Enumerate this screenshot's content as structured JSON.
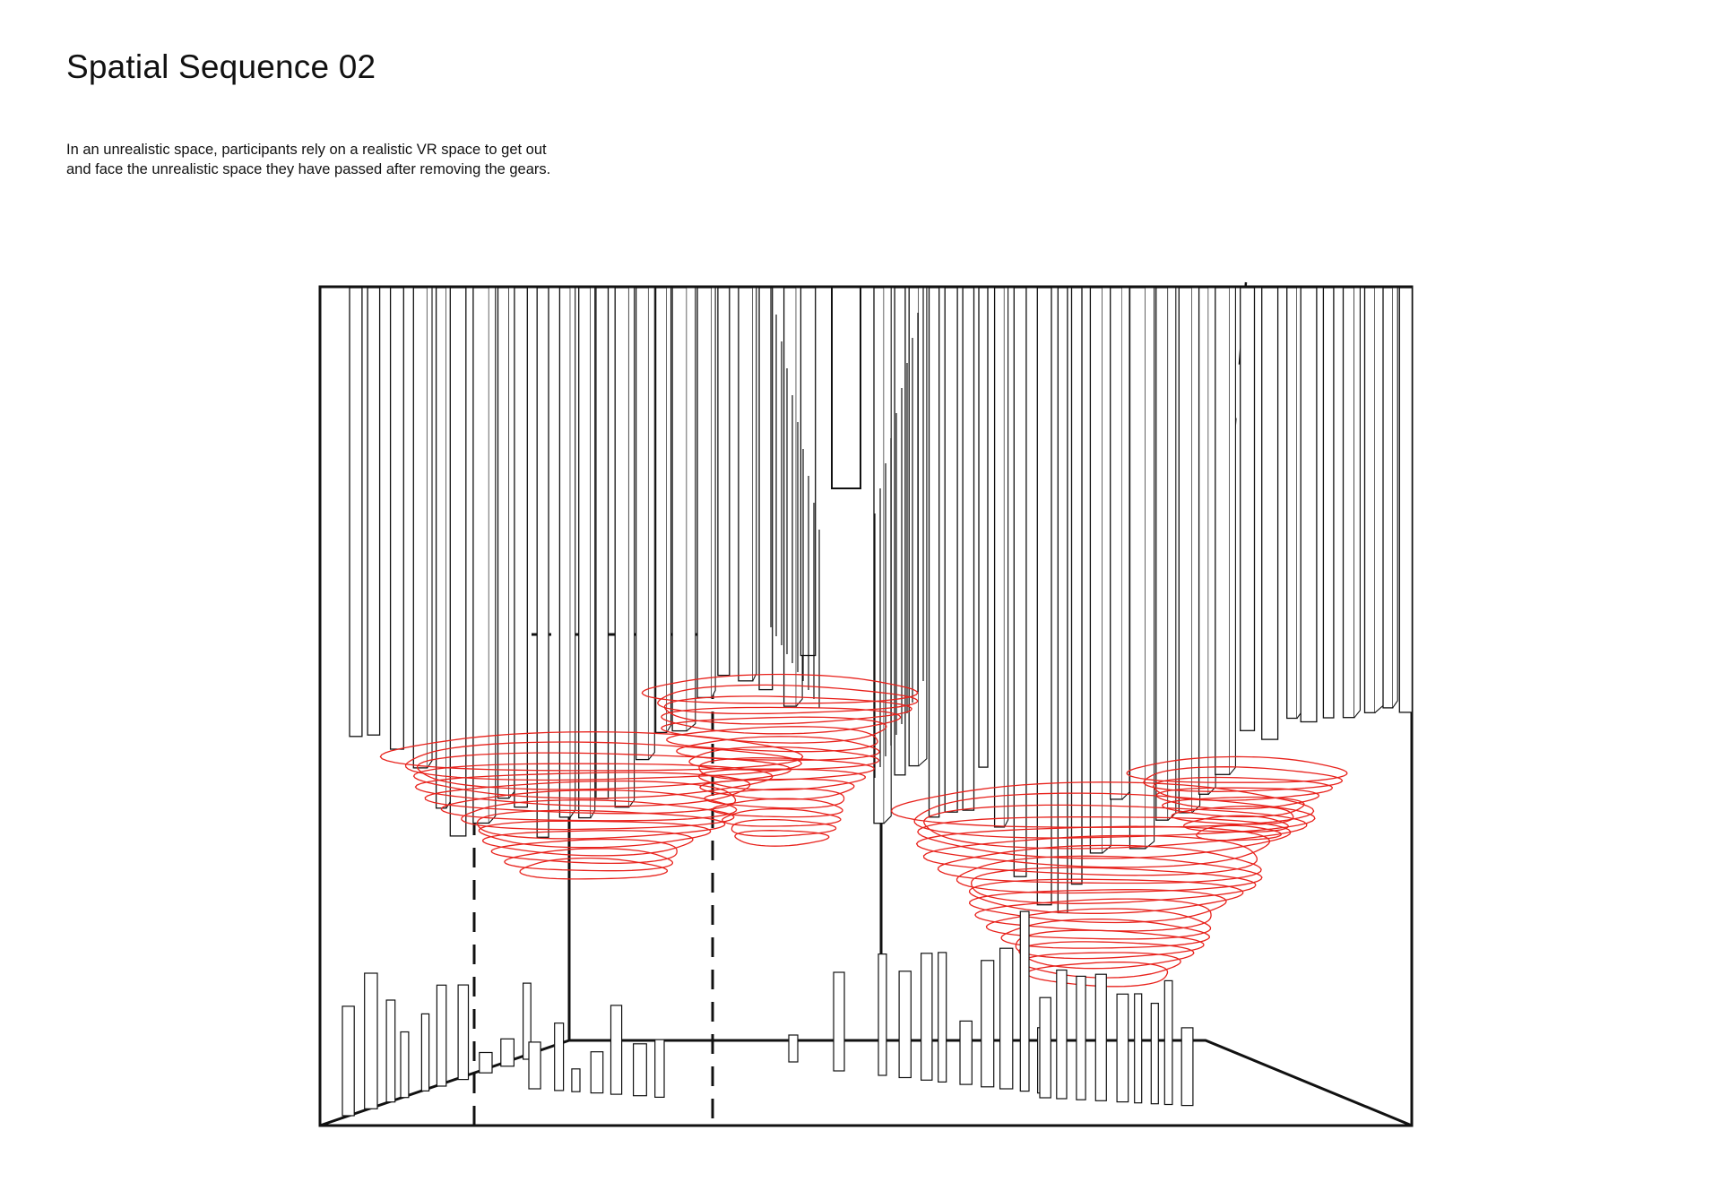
{
  "header": {
    "title": "Spatial Sequence 02",
    "description_lines": [
      "In an unrealistic space, participants rely on a realistic VR space to get out",
      "and face the unrealistic space they have passed after removing the gears."
    ]
  },
  "drawing": {
    "line_color": "#111111",
    "accent_color": "#e8221c"
  }
}
